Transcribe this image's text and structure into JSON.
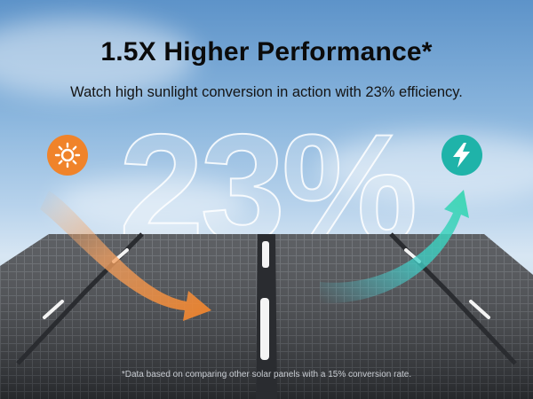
{
  "headline": "1.5X Higher Performance*",
  "subheadline": "Watch high sunlight conversion in action with 23% efficiency.",
  "efficiency_value": "23%",
  "footnote": "*Data based on comparing other solar panels with a 15% conversion rate.",
  "icons": {
    "sun": "sun-icon",
    "lightning": "lightning-bolt-icon"
  },
  "colors": {
    "sun_badge": "#f0832a",
    "bolt_badge": "#1fb3a9",
    "input_arrow": "#f0a060",
    "output_arrow": "#3fd1c0"
  }
}
